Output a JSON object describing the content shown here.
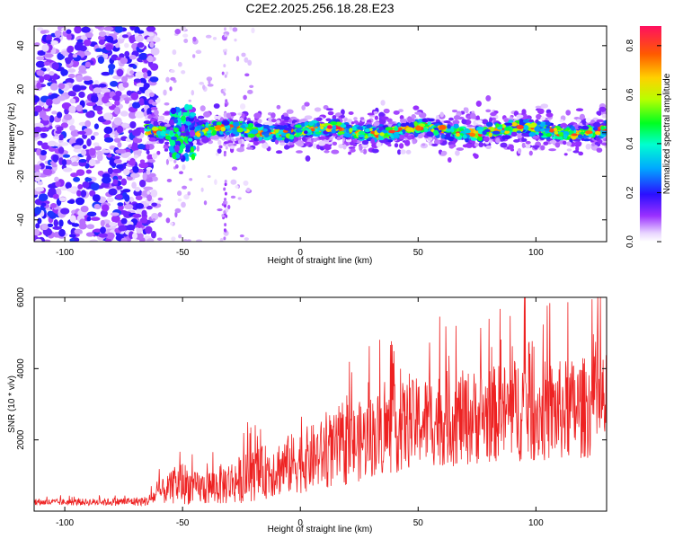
{
  "title": "C2E2.2025.256.18.28.E23",
  "chart_data": [
    {
      "type": "heatmap",
      "xlabel": "Height of straight line (km)",
      "ylabel": "Frequency (Hz)",
      "xlim": [
        -113,
        130
      ],
      "ylim": [
        -50,
        49
      ],
      "xticks": [
        -100,
        -50,
        0,
        50,
        100
      ],
      "yticks": [
        -40,
        -20,
        0,
        20,
        40
      ],
      "grid": false,
      "colorbar": {
        "label": "Normalized spectral amplitude",
        "range": [
          0,
          0.88
        ],
        "ticks": [
          0.0,
          0.2,
          0.4,
          0.6,
          0.8
        ],
        "tick_labels": [
          "0.0",
          "0.2",
          "0.4",
          "0.6",
          "0.8"
        ]
      },
      "features": [
        {
          "name": "noise region",
          "x_range": [
            -113,
            -65
          ],
          "y_range": [
            -50,
            49
          ],
          "amplitude": 0.15
        },
        {
          "name": "signal ridge",
          "x_range": [
            -65,
            130
          ],
          "center_frequency_hz": 1,
          "half_width_hz": 5,
          "peak_amplitude": 0.88
        },
        {
          "name": "dip near -48 km",
          "x_range": [
            -55,
            -45
          ],
          "y_range": [
            -12,
            12
          ],
          "amplitude": 0.5
        }
      ]
    },
    {
      "type": "line",
      "xlabel": "Height of straight line (km)",
      "ylabel": "SNR (10 * v/v)",
      "xlim": [
        -113,
        130
      ],
      "ylim": [
        0,
        6000
      ],
      "xticks": [
        -100,
        -50,
        0,
        50,
        100
      ],
      "yticks": [
        2000,
        4000,
        6000
      ],
      "grid": false,
      "series": [
        {
          "name": "SNR",
          "color": "#ee2222",
          "x": [
            -113,
            -100,
            -80,
            -65,
            -60,
            -55,
            -50,
            -45,
            -40,
            -30,
            -20,
            -10,
            0,
            10,
            20,
            30,
            40,
            50,
            60,
            70,
            80,
            90,
            95,
            100,
            110,
            120,
            130
          ],
          "y": [
            250,
            250,
            260,
            280,
            500,
            650,
            800,
            650,
            650,
            800,
            1000,
            1200,
            1400,
            1600,
            1800,
            2100,
            2300,
            2500,
            2600,
            2600,
            2700,
            2800,
            3000,
            2800,
            2800,
            2900,
            3000
          ],
          "spread": [
            100,
            100,
            120,
            150,
            350,
            500,
            700,
            500,
            550,
            700,
            800,
            900,
            1000,
            1100,
            1200,
            1300,
            1400,
            1400,
            1500,
            1500,
            1500,
            1600,
            1800,
            1600,
            1600,
            1600,
            1600
          ]
        }
      ]
    }
  ]
}
